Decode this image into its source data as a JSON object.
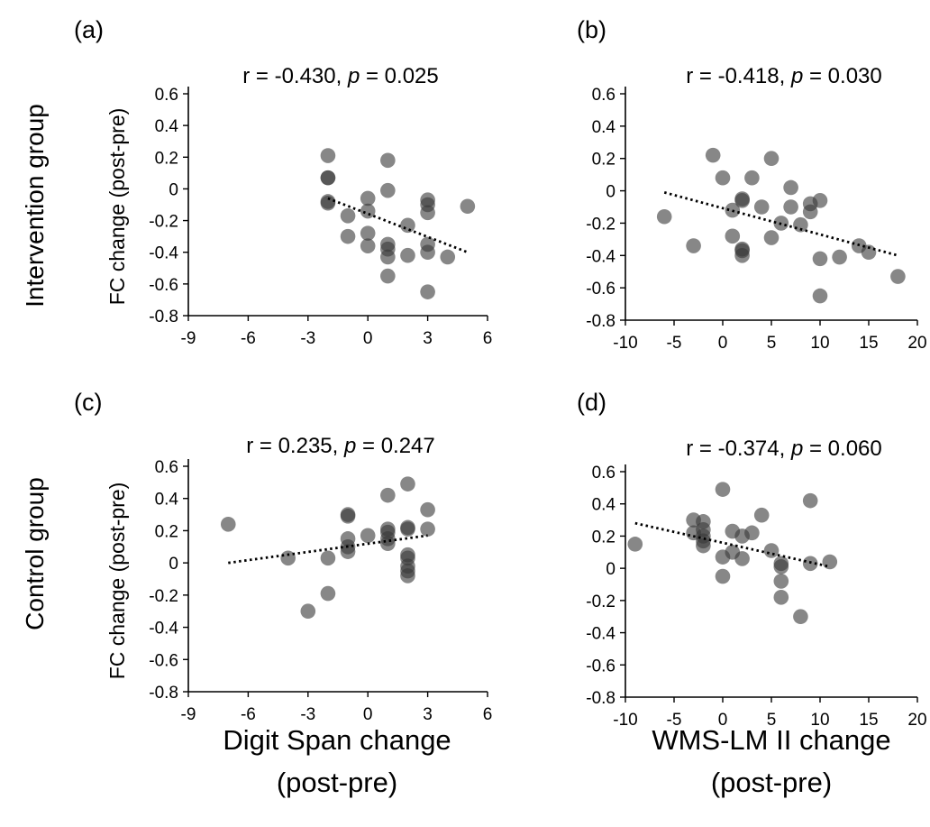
{
  "figure": {
    "row_labels": [
      "Intervention group",
      "Control group"
    ],
    "x_titles": [
      {
        "line1": "Digit Span change",
        "line2": "(post-pre)"
      },
      {
        "line1": "WMS-LM II change",
        "line2": "(post-pre)"
      }
    ]
  },
  "chart_data": [
    {
      "type": "scatter",
      "panel": "(a)",
      "stat": {
        "r": "r = -0.430, ",
        "p": "p",
        "rest": " = 0.025"
      },
      "xlabel": "",
      "ylabel": "FC change (post-pre)",
      "xlim": [
        -9,
        6
      ],
      "ylim": [
        -0.8,
        0.6
      ],
      "xticks": [
        -9,
        -6,
        -3,
        0,
        3,
        6
      ],
      "yticks": [
        -0.8,
        -0.6,
        -0.4,
        -0.2,
        0,
        0.2,
        0.4,
        0.6
      ],
      "trendline": {
        "x": [
          -2,
          5
        ],
        "y": [
          -0.06,
          -0.4
        ]
      },
      "points": [
        [
          -2,
          0.21
        ],
        [
          -2,
          0.07
        ],
        [
          -2,
          0.07
        ],
        [
          -2,
          -0.08
        ],
        [
          -2,
          -0.09
        ],
        [
          -1,
          -0.17
        ],
        [
          -1,
          -0.3
        ],
        [
          0,
          -0.06
        ],
        [
          0,
          -0.14
        ],
        [
          0,
          -0.28
        ],
        [
          0,
          -0.36
        ],
        [
          1,
          0.18
        ],
        [
          1,
          -0.01
        ],
        [
          1,
          -0.35
        ],
        [
          1,
          -0.38
        ],
        [
          1,
          -0.43
        ],
        [
          1,
          -0.55
        ],
        [
          2,
          -0.23
        ],
        [
          2,
          -0.42
        ],
        [
          3,
          -0.07
        ],
        [
          3,
          -0.1
        ],
        [
          3,
          -0.15
        ],
        [
          3,
          -0.35
        ],
        [
          3,
          -0.4
        ],
        [
          3,
          -0.65
        ],
        [
          4,
          -0.43
        ],
        [
          5,
          -0.11
        ]
      ]
    },
    {
      "type": "scatter",
      "panel": "(b)",
      "stat": {
        "r": "r = -0.418, ",
        "p": "p",
        "rest": " = 0.030"
      },
      "xlabel": "",
      "ylabel": "",
      "xlim": [
        -10,
        20
      ],
      "ylim": [
        -0.8,
        0.6
      ],
      "xticks": [
        -10,
        -5,
        0,
        5,
        10,
        15,
        20
      ],
      "yticks": [
        -0.8,
        -0.6,
        -0.4,
        -0.2,
        0,
        0.2,
        0.4,
        0.6
      ],
      "trendline": {
        "x": [
          -6,
          18
        ],
        "y": [
          -0.01,
          -0.4
        ]
      },
      "points": [
        [
          -6,
          -0.16
        ],
        [
          -3,
          -0.34
        ],
        [
          -1,
          0.22
        ],
        [
          0,
          0.08
        ],
        [
          1,
          -0.12
        ],
        [
          1,
          -0.28
        ],
        [
          2,
          -0.05
        ],
        [
          2,
          -0.06
        ],
        [
          2,
          -0.36
        ],
        [
          2,
          -0.37
        ],
        [
          2,
          -0.4
        ],
        [
          3,
          0.08
        ],
        [
          4,
          -0.1
        ],
        [
          5,
          0.2
        ],
        [
          5,
          -0.29
        ],
        [
          6,
          -0.2
        ],
        [
          7,
          0.02
        ],
        [
          7,
          -0.1
        ],
        [
          8,
          -0.21
        ],
        [
          9,
          -0.08
        ],
        [
          9,
          -0.13
        ],
        [
          10,
          -0.06
        ],
        [
          10,
          -0.42
        ],
        [
          10,
          -0.65
        ],
        [
          12,
          -0.41
        ],
        [
          14,
          -0.34
        ],
        [
          15,
          -0.38
        ],
        [
          18,
          -0.53
        ]
      ]
    },
    {
      "type": "scatter",
      "panel": "(c)",
      "stat": {
        "r": "r = 0.235, ",
        "p": "p",
        "rest": " = 0.247"
      },
      "xlabel": "",
      "ylabel": "FC change (post-pre)",
      "xlim": [
        -9,
        6
      ],
      "ylim": [
        -0.8,
        0.6
      ],
      "xticks": [
        -9,
        -6,
        -3,
        0,
        3,
        6
      ],
      "yticks": [
        -0.8,
        -0.6,
        -0.4,
        -0.2,
        0,
        0.2,
        0.4,
        0.6
      ],
      "trendline": {
        "x": [
          -7,
          3
        ],
        "y": [
          0.0,
          0.17
        ]
      },
      "points": [
        [
          -7,
          0.24
        ],
        [
          -4,
          0.03
        ],
        [
          -3,
          -0.3
        ],
        [
          -2,
          0.03
        ],
        [
          -2,
          -0.19
        ],
        [
          -1,
          0.3
        ],
        [
          -1,
          0.29
        ],
        [
          -1,
          0.15
        ],
        [
          -1,
          0.1
        ],
        [
          -1,
          0.07
        ],
        [
          0,
          0.17
        ],
        [
          1,
          0.42
        ],
        [
          1,
          0.21
        ],
        [
          1,
          0.19
        ],
        [
          1,
          0.15
        ],
        [
          1,
          0.12
        ],
        [
          2,
          0.49
        ],
        [
          2,
          0.22
        ],
        [
          2,
          0.21
        ],
        [
          2,
          0.05
        ],
        [
          2,
          0.03
        ],
        [
          2,
          -0.02
        ],
        [
          2,
          -0.05
        ],
        [
          2,
          -0.08
        ],
        [
          3,
          0.33
        ],
        [
          3,
          0.21
        ]
      ]
    },
    {
      "type": "scatter",
      "panel": "(d)",
      "stat": {
        "r": "r = -0.374, ",
        "p": "p",
        "rest": " = 0.060"
      },
      "xlabel": "",
      "ylabel": "",
      "xlim": [
        -10,
        20
      ],
      "ylim": [
        -0.8,
        0.6
      ],
      "xticks": [
        -10,
        -5,
        0,
        5,
        10,
        15,
        20
      ],
      "yticks": [
        -0.8,
        -0.6,
        -0.4,
        -0.2,
        0,
        0.2,
        0.4,
        0.6
      ],
      "trendline": {
        "x": [
          -9,
          11
        ],
        "y": [
          0.28,
          0.01
        ]
      },
      "points": [
        [
          -9,
          0.15
        ],
        [
          -3,
          0.3
        ],
        [
          -3,
          0.22
        ],
        [
          -2,
          0.29
        ],
        [
          -2,
          0.24
        ],
        [
          -2,
          0.2
        ],
        [
          -2,
          0.17
        ],
        [
          -2,
          0.14
        ],
        [
          0,
          0.49
        ],
        [
          0,
          0.07
        ],
        [
          0,
          -0.05
        ],
        [
          1,
          0.23
        ],
        [
          1,
          0.1
        ],
        [
          2,
          0.2
        ],
        [
          2,
          0.06
        ],
        [
          3,
          0.22
        ],
        [
          4,
          0.33
        ],
        [
          5,
          0.11
        ],
        [
          6,
          0.03
        ],
        [
          6,
          0.01
        ],
        [
          6,
          -0.08
        ],
        [
          6,
          -0.18
        ],
        [
          8,
          -0.3
        ],
        [
          9,
          0.42
        ],
        [
          9,
          0.03
        ],
        [
          11,
          0.04
        ]
      ]
    }
  ]
}
